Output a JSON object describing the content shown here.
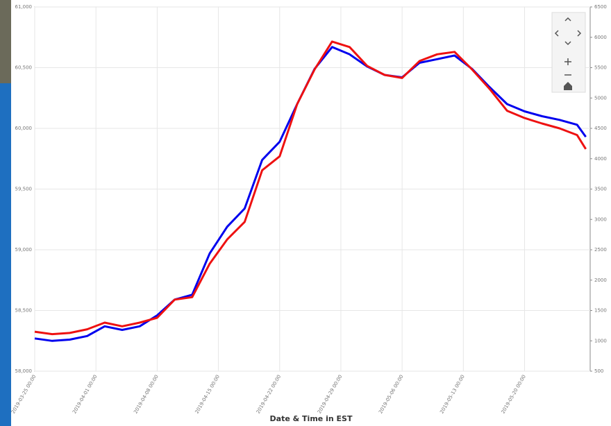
{
  "chart_data": {
    "type": "line",
    "x_label": "Date & Time in EST",
    "x": [
      "2019-03-25 00:00",
      "2019-03-27 00:00",
      "2019-03-29 00:00",
      "2019-03-31 00:00",
      "2019-04-02 00:00",
      "2019-04-04 00:00",
      "2019-04-06 00:00",
      "2019-04-08 00:00",
      "2019-04-10 00:00",
      "2019-04-12 00:00",
      "2019-04-14 00:00",
      "2019-04-16 00:00",
      "2019-04-18 00:00",
      "2019-04-20 00:00",
      "2019-04-22 00:00",
      "2019-04-24 00:00",
      "2019-04-26 00:00",
      "2019-04-28 00:00",
      "2019-04-30 00:00",
      "2019-05-02 00:00",
      "2019-05-04 00:00",
      "2019-05-06 00:00",
      "2019-05-08 00:00",
      "2019-05-10 00:00",
      "2019-05-12 00:00",
      "2019-05-14 00:00",
      "2019-05-16 00:00",
      "2019-05-18 00:00",
      "2019-05-20 00:00",
      "2019-05-22 00:00",
      "2019-05-24 00:00",
      "2019-05-26 00:00",
      "2019-05-27 00:00"
    ],
    "xlim": [
      "2019-03-25 00:00",
      "2019-05-27 12:00"
    ],
    "xticks": [
      "2019-03-25 00:00",
      "2019-04-01 00:00",
      "2019-04-08 00:00",
      "2019-04-15 00:00",
      "2019-04-22 00:00",
      "2019-04-29 00:00",
      "2019-05-06 00:00",
      "2019-05-13 00:00",
      "2019-05-20 00:00"
    ],
    "ylim": [
      58000,
      61000
    ],
    "yticks": [
      {
        "value": 58000,
        "label": "58,000"
      },
      {
        "value": 58500,
        "label": "58,500"
      },
      {
        "value": 59000,
        "label": "59,000"
      },
      {
        "value": 59500,
        "label": "59,500"
      },
      {
        "value": 60000,
        "label": "60,000"
      },
      {
        "value": 60500,
        "label": "60,500"
      },
      {
        "value": 61000,
        "label": "61,000"
      }
    ],
    "y2lim": [
      500,
      6500
    ],
    "y2ticks": [
      500,
      1000,
      1500,
      2000,
      2500,
      3000,
      3500,
      4000,
      4500,
      5000,
      5500,
      6000,
      6500
    ],
    "grid": true,
    "series": [
      {
        "color": "#0000ee",
        "values": [
          58270,
          58250,
          58260,
          58290,
          58370,
          58340,
          58370,
          58460,
          58590,
          58630,
          58970,
          59190,
          59340,
          59740,
          59890,
          60200,
          60490,
          60670,
          60610,
          60510,
          60440,
          60420,
          60540,
          60570,
          60600,
          60490,
          60340,
          60200,
          60140,
          60100,
          60070,
          60030,
          59930
        ]
      },
      {
        "color": "#ee1111",
        "axis": "y2",
        "values": [
          1150,
          1110,
          1130,
          1190,
          1300,
          1240,
          1300,
          1380,
          1680,
          1720,
          2270,
          2670,
          2960,
          3810,
          4040,
          4900,
          5470,
          5930,
          5840,
          5530,
          5380,
          5330,
          5610,
          5720,
          5760,
          5470,
          5150,
          4790,
          4670,
          4580,
          4500,
          4390,
          4160
        ]
      }
    ]
  }
}
